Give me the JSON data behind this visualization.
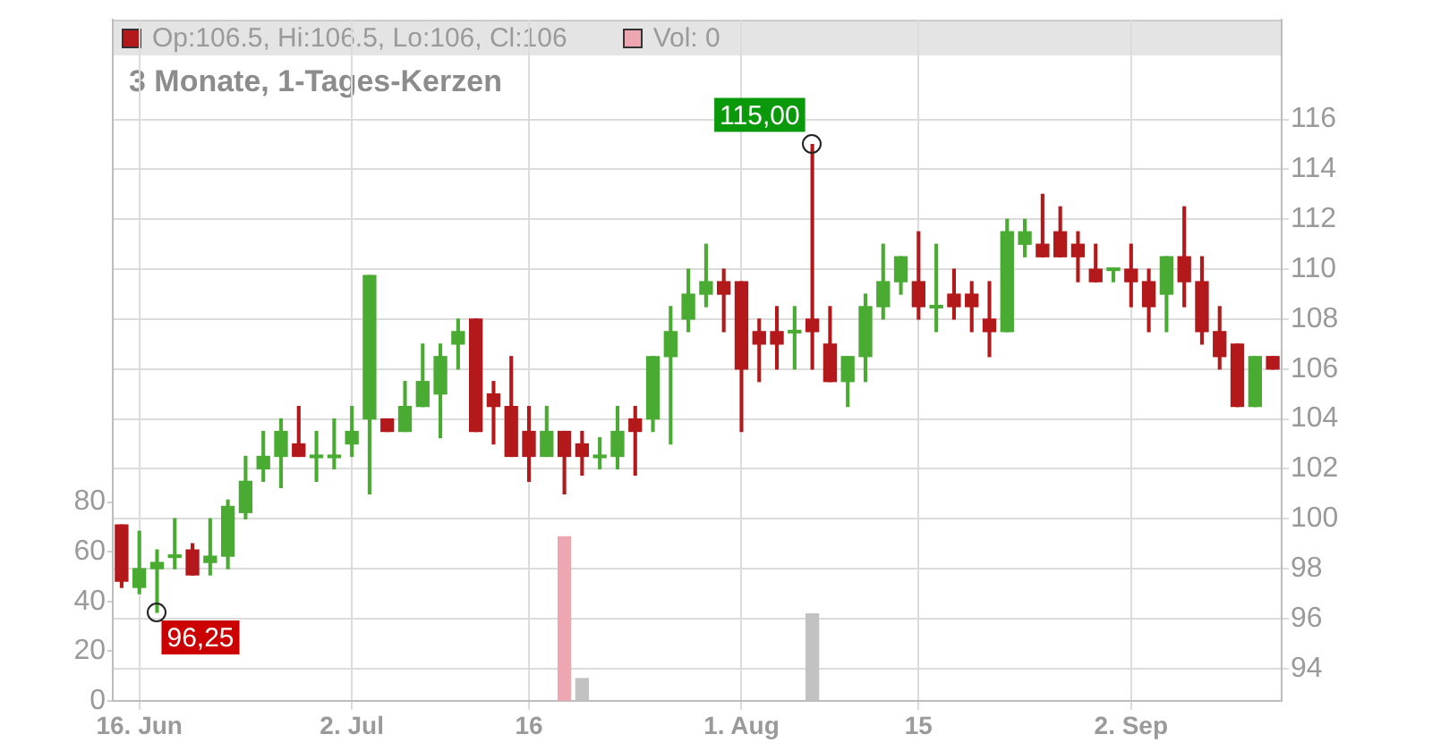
{
  "chart_data": {
    "type": "candlestick",
    "title": "3 Monate, 1-Tages-Kerzen",
    "categories": [
      null,
      "16. Jun",
      null,
      null,
      null,
      null,
      null,
      null,
      null,
      null,
      null,
      null,
      null,
      "2. Jul",
      null,
      null,
      null,
      null,
      null,
      null,
      null,
      null,
      null,
      "16",
      null,
      null,
      null,
      null,
      null,
      null,
      null,
      null,
      null,
      null,
      null,
      "1. Aug",
      null,
      null,
      null,
      null,
      null,
      null,
      null,
      null,
      null,
      "15",
      null,
      null,
      null,
      null,
      null,
      null,
      null,
      null,
      null,
      null,
      null,
      "2. Sep",
      null,
      null,
      null,
      null,
      null,
      null,
      null,
      null
    ],
    "ohlc": [
      [
        99.75,
        99.75,
        97.25,
        97.5
      ],
      [
        97.25,
        99.5,
        97,
        98
      ],
      [
        98,
        98.75,
        96.25,
        98.25
      ],
      [
        98.5,
        100,
        98,
        98.5
      ],
      [
        98.75,
        99,
        97.75,
        97.75
      ],
      [
        98.25,
        100,
        97.75,
        98.5
      ],
      [
        98.5,
        100.75,
        98,
        100.5
      ],
      [
        100.25,
        102.5,
        100,
        101.5
      ],
      [
        102,
        103.5,
        101.5,
        102.5
      ],
      [
        102.5,
        104,
        101.25,
        103.5
      ],
      [
        103,
        104.5,
        102.5,
        102.5
      ],
      [
        102.5,
        103.5,
        101.5,
        102.5
      ],
      [
        102.5,
        104,
        102,
        102.5
      ],
      [
        103,
        104.5,
        102.5,
        103.5
      ],
      [
        104,
        109.75,
        101,
        109.75
      ],
      [
        104,
        104,
        103.5,
        103.5
      ],
      [
        103.5,
        105.5,
        103.5,
        104.5
      ],
      [
        104.5,
        107,
        104.5,
        105.5
      ],
      [
        105,
        107,
        103.25,
        106.5
      ],
      [
        107,
        108,
        106,
        107.5
      ],
      [
        108,
        108,
        103.5,
        103.5
      ],
      [
        105,
        105.5,
        103,
        104.5
      ],
      [
        104.5,
        106.5,
        102.5,
        102.5
      ],
      [
        103.5,
        104.5,
        101.5,
        102.5
      ],
      [
        102.5,
        104.5,
        102.5,
        103.5
      ],
      [
        103.5,
        103.5,
        101,
        102.5
      ],
      [
        103,
        103.5,
        101.75,
        102.5
      ],
      [
        102.5,
        103.25,
        102,
        102.5
      ],
      [
        102.5,
        104.5,
        102,
        103.5
      ],
      [
        104,
        104.5,
        101.75,
        103.5
      ],
      [
        104,
        106.5,
        103.5,
        106.5
      ],
      [
        106.5,
        108.5,
        103,
        107.5
      ],
      [
        108,
        110,
        107.5,
        109
      ],
      [
        109,
        111,
        108.5,
        109.5
      ],
      [
        109.5,
        110,
        107.5,
        109
      ],
      [
        109.5,
        109.5,
        103.5,
        106
      ],
      [
        107.5,
        108,
        105.5,
        107
      ],
      [
        107.5,
        108.5,
        106,
        107
      ],
      [
        107.5,
        108.5,
        106,
        107.5
      ],
      [
        108,
        115,
        106,
        107.5
      ],
      [
        107,
        108.5,
        105.5,
        105.5
      ],
      [
        105.5,
        106.5,
        104.5,
        106.5
      ],
      [
        106.5,
        109,
        105.5,
        108.5
      ],
      [
        108.5,
        111,
        108,
        109.5
      ],
      [
        109.5,
        110.5,
        109,
        110.5
      ],
      [
        109.5,
        111.5,
        108,
        108.5
      ],
      [
        108.5,
        111,
        107.5,
        108.5
      ],
      [
        109,
        110,
        108,
        108.5
      ],
      [
        109,
        109.5,
        107.5,
        108.5
      ],
      [
        108,
        109.5,
        106.5,
        107.5
      ],
      [
        107.5,
        112,
        107.5,
        111.5
      ],
      [
        111,
        112,
        110.5,
        111.5
      ],
      [
        111,
        113,
        110.5,
        110.5
      ],
      [
        111.5,
        112.5,
        110.5,
        110.5
      ],
      [
        111,
        111.5,
        109.5,
        110.5
      ],
      [
        110,
        111,
        109.5,
        109.5
      ],
      [
        110,
        110,
        109.5,
        110
      ],
      [
        110,
        111,
        108.5,
        109.5
      ],
      [
        109.5,
        110,
        107.5,
        108.5
      ],
      [
        109,
        110.5,
        107.5,
        110.5
      ],
      [
        110.5,
        112.5,
        108.5,
        109.5
      ],
      [
        109.5,
        110.5,
        107,
        107.5
      ],
      [
        107.5,
        108.5,
        106,
        106.5
      ],
      [
        107,
        107,
        104.5,
        104.5
      ],
      [
        104.5,
        106.5,
        104.5,
        106.5
      ],
      [
        106.5,
        106.5,
        106,
        106
      ]
    ],
    "colors": [
      "#b3191b",
      "#4aab32",
      "#4aab32",
      "#4aab32",
      "#b3191b",
      "#4aab32",
      "#4aab32",
      "#4aab32",
      "#4aab32",
      "#4aab32",
      "#b3191b",
      "#4aab32",
      "#4aab32",
      "#4aab32",
      "#4aab32",
      "#b3191b",
      "#4aab32",
      "#4aab32",
      "#4aab32",
      "#4aab32",
      "#b3191b",
      "#b3191b",
      "#b3191b",
      "#b3191b",
      "#4aab32",
      "#b3191b",
      "#b3191b",
      "#4aab32",
      "#4aab32",
      "#b3191b",
      "#4aab32",
      "#4aab32",
      "#4aab32",
      "#4aab32",
      "#b3191b",
      "#b3191b",
      "#b3191b",
      "#b3191b",
      "#4aab32",
      "#b3191b",
      "#b3191b",
      "#4aab32",
      "#4aab32",
      "#4aab32",
      "#4aab32",
      "#b3191b",
      "#4aab32",
      "#b3191b",
      "#b3191b",
      "#b3191b",
      "#4aab32",
      "#4aab32",
      "#b3191b",
      "#b3191b",
      "#b3191b",
      "#b3191b",
      "#4aab32",
      "#b3191b",
      "#b3191b",
      "#4aab32",
      "#b3191b",
      "#b3191b",
      "#b3191b",
      "#b3191b",
      "#4aab32",
      "#b3191b"
    ],
    "ylim": [
      92.7,
      120
    ],
    "yticks": [
      94,
      96,
      98,
      100,
      102,
      104,
      106,
      108,
      110,
      112,
      114,
      116
    ],
    "y2lim": [
      0,
      274
    ],
    "y2ticks": [
      0,
      20,
      40,
      60,
      80
    ],
    "series": [
      {
        "type": "bar",
        "axis": "y2",
        "values": [
          null,
          null,
          null,
          null,
          null,
          null,
          null,
          null,
          null,
          null,
          null,
          null,
          null,
          null,
          null,
          null,
          null,
          null,
          null,
          null,
          null,
          null,
          null,
          null,
          null,
          66,
          9,
          null,
          null,
          null,
          null,
          null,
          null,
          null,
          null,
          null,
          null,
          null,
          null,
          35,
          null,
          null,
          null,
          null,
          null,
          null,
          null,
          null,
          null,
          null,
          null,
          null,
          null,
          null,
          null,
          null,
          null,
          null,
          null,
          null,
          null,
          null,
          null,
          null,
          null,
          null
        ],
        "colors": [
          "#c2c2c2",
          "#c2c2c2",
          "#c2c2c2",
          "#c2c2c2",
          "#c2c2c2",
          "#c2c2c2",
          "#c2c2c2",
          "#c2c2c2",
          "#c2c2c2",
          "#c2c2c2",
          "#c2c2c2",
          "#c2c2c2",
          "#c2c2c2",
          "#c2c2c2",
          "#c2c2c2",
          "#c2c2c2",
          "#c2c2c2",
          "#c2c2c2",
          "#c2c2c2",
          "#c2c2c2",
          "#c2c2c2",
          "#c2c2c2",
          "#c2c2c2",
          "#c2c2c2",
          "#c2c2c2",
          "#eea6b0",
          "#c2c2c2",
          "#c2c2c2",
          "#c2c2c2",
          "#c2c2c2",
          "#c2c2c2",
          "#c2c2c2",
          "#c2c2c2",
          "#c2c2c2",
          "#c2c2c2",
          "#c2c2c2",
          "#c2c2c2",
          "#c2c2c2",
          "#c2c2c2",
          "#c2c2c2",
          "#c2c2c2",
          "#c2c2c2",
          "#c2c2c2",
          "#c2c2c2",
          "#c2c2c2",
          "#c2c2c2",
          "#c2c2c2",
          "#c2c2c2",
          "#c2c2c2",
          "#c2c2c2",
          "#c2c2c2",
          "#c2c2c2",
          "#c2c2c2",
          "#c2c2c2",
          "#c2c2c2",
          "#c2c2c2",
          "#c2c2c2",
          "#c2c2c2",
          "#c2c2c2",
          "#c2c2c2",
          "#c2c2c2",
          "#c2c2c2",
          "#c2c2c2",
          "#c2c2c2",
          "#c2c2c2",
          "#c2c2c2"
        ]
      }
    ],
    "annotations": [
      "Op:106.5, Hi:106.5, Lo:106, Cl:106",
      "Vol: 0",
      "115,00",
      "96,25"
    ],
    "grid": true
  }
}
